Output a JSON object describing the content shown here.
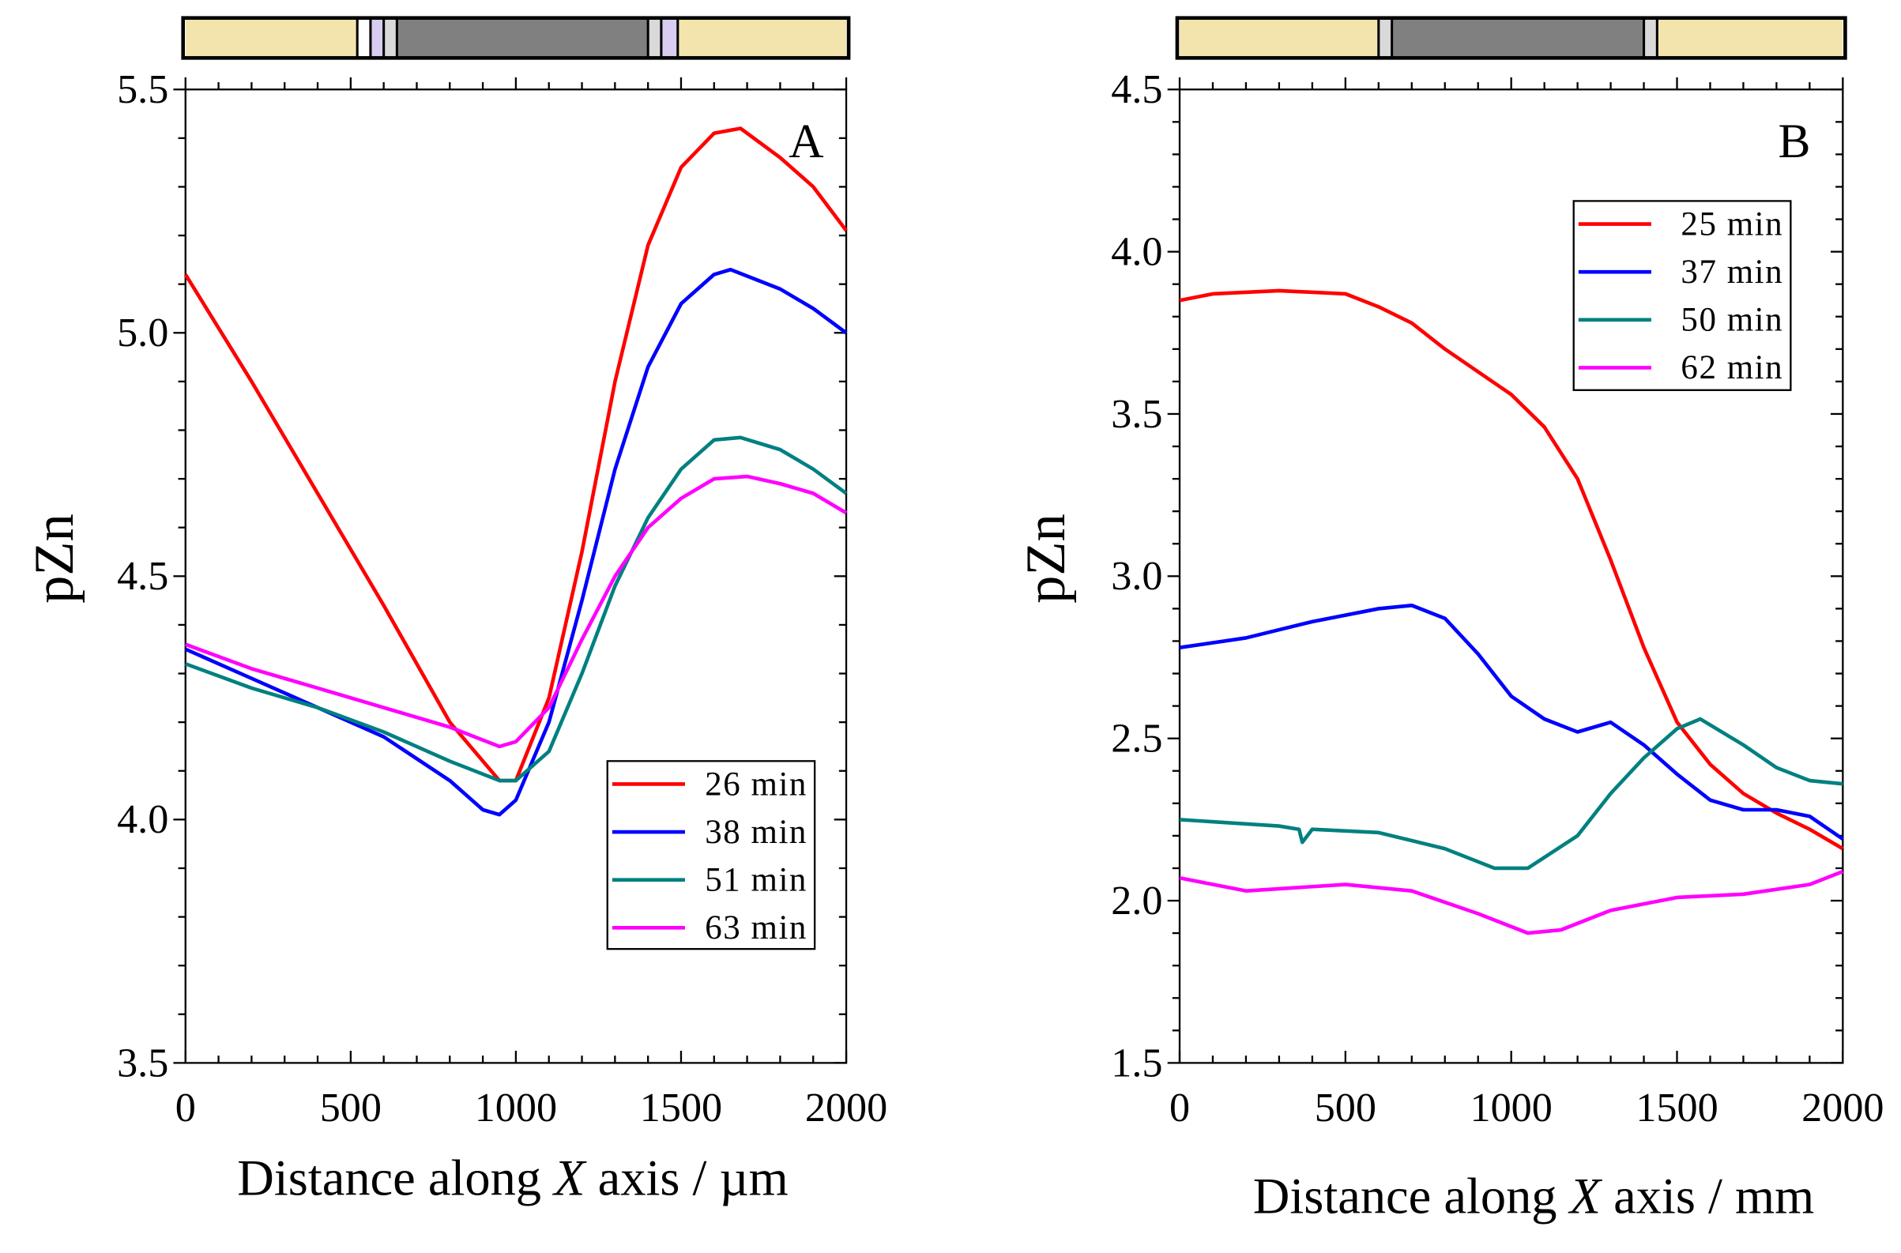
{
  "chart_data": [
    {
      "type": "line",
      "panel_label": "A",
      "xlabel_prefix": "Distance along ",
      "xlabel_var": "X",
      "xlabel_suffix": " axis / µm",
      "ylabel": "pZn",
      "xlim": [
        0,
        2000
      ],
      "ylim": [
        3.5,
        5.5
      ],
      "xticks": [
        "0",
        "500",
        "1000",
        "1500",
        "2000"
      ],
      "yticks": [
        "3.5",
        "4.0",
        "4.5",
        "5.0",
        "5.5"
      ],
      "legend_position": "lower-right",
      "strip": [
        {
          "from": 0,
          "to": 520,
          "color": "#f2e4ac"
        },
        {
          "from": 520,
          "to": 560,
          "color": "#ffffff"
        },
        {
          "from": 560,
          "to": 600,
          "color": "#d8ccf0"
        },
        {
          "from": 600,
          "to": 640,
          "color": "#d9d9d9"
        },
        {
          "from": 640,
          "to": 1400,
          "color": "#808080"
        },
        {
          "from": 1400,
          "to": 1440,
          "color": "#d9d9d9"
        },
        {
          "from": 1440,
          "to": 1490,
          "color": "#d8ccf0"
        },
        {
          "from": 1490,
          "to": 2000,
          "color": "#f2e4ac"
        }
      ],
      "series": [
        {
          "name": "26 min",
          "color": "#ff0000",
          "x": [
            0,
            200,
            400,
            600,
            800,
            950,
            1000,
            1100,
            1200,
            1300,
            1400,
            1500,
            1600,
            1680,
            1800,
            1900,
            2000
          ],
          "y": [
            5.12,
            4.9,
            4.67,
            4.44,
            4.2,
            4.08,
            4.08,
            4.25,
            4.55,
            4.9,
            5.18,
            5.34,
            5.41,
            5.42,
            5.36,
            5.3,
            5.21
          ]
        },
        {
          "name": "38 min",
          "color": "#0000ff",
          "x": [
            0,
            200,
            400,
            600,
            800,
            900,
            950,
            1000,
            1100,
            1200,
            1300,
            1400,
            1500,
            1600,
            1650,
            1800,
            1900,
            2000
          ],
          "y": [
            4.35,
            4.29,
            4.23,
            4.17,
            4.08,
            4.02,
            4.01,
            4.04,
            4.2,
            4.45,
            4.72,
            4.93,
            5.06,
            5.12,
            5.13,
            5.09,
            5.05,
            5.0
          ]
        },
        {
          "name": "51 min",
          "color": "#008080",
          "x": [
            0,
            200,
            400,
            600,
            800,
            950,
            1000,
            1100,
            1200,
            1300,
            1400,
            1500,
            1600,
            1680,
            1800,
            1900,
            2000
          ],
          "y": [
            4.32,
            4.27,
            4.23,
            4.18,
            4.12,
            4.08,
            4.08,
            4.14,
            4.3,
            4.48,
            4.62,
            4.72,
            4.78,
            4.785,
            4.76,
            4.72,
            4.67
          ]
        },
        {
          "name": "63 min",
          "color": "#ff00ff",
          "x": [
            0,
            200,
            400,
            600,
            800,
            950,
            1000,
            1100,
            1200,
            1300,
            1400,
            1500,
            1600,
            1700,
            1800,
            1900,
            2000
          ],
          "y": [
            4.36,
            4.31,
            4.27,
            4.23,
            4.19,
            4.15,
            4.16,
            4.23,
            4.37,
            4.5,
            4.6,
            4.66,
            4.7,
            4.705,
            4.69,
            4.67,
            4.63
          ]
        }
      ]
    },
    {
      "type": "line",
      "panel_label": "B",
      "xlabel_prefix": "Distance along ",
      "xlabel_var": "X",
      "xlabel_suffix": " axis / mm",
      "ylabel": "pZn",
      "xlim": [
        0,
        2000
      ],
      "ylim": [
        1.5,
        4.5
      ],
      "xticks": [
        "0",
        "500",
        "1000",
        "1500",
        "2000"
      ],
      "yticks": [
        "1.5",
        "2.0",
        "2.5",
        "3.0",
        "3.5",
        "4.0",
        "4.5"
      ],
      "legend_position": "upper-right",
      "strip": [
        {
          "from": 0,
          "to": 600,
          "color": "#f2e4ac"
        },
        {
          "from": 600,
          "to": 640,
          "color": "#d9d9d9"
        },
        {
          "from": 640,
          "to": 1400,
          "color": "#808080"
        },
        {
          "from": 1400,
          "to": 1440,
          "color": "#d9d9d9"
        },
        {
          "from": 1440,
          "to": 2000,
          "color": "#f2e4ac"
        }
      ],
      "series": [
        {
          "name": "25 min",
          "color": "#ff0000",
          "x": [
            0,
            100,
            300,
            500,
            600,
            700,
            800,
            900,
            1000,
            1100,
            1200,
            1300,
            1400,
            1500,
            1600,
            1700,
            1800,
            1900,
            2000
          ],
          "y": [
            3.85,
            3.87,
            3.88,
            3.87,
            3.83,
            3.78,
            3.7,
            3.63,
            3.56,
            3.46,
            3.3,
            3.05,
            2.78,
            2.55,
            2.42,
            2.33,
            2.27,
            2.22,
            2.16
          ]
        },
        {
          "name": "37 min",
          "color": "#0000ff",
          "x": [
            0,
            200,
            400,
            600,
            700,
            800,
            900,
            1000,
            1100,
            1200,
            1300,
            1400,
            1500,
            1600,
            1700,
            1800,
            1900,
            2000
          ],
          "y": [
            2.78,
            2.81,
            2.86,
            2.9,
            2.91,
            2.87,
            2.76,
            2.63,
            2.56,
            2.52,
            2.55,
            2.48,
            2.39,
            2.31,
            2.28,
            2.28,
            2.26,
            2.19
          ]
        },
        {
          "name": "50 min",
          "color": "#008080",
          "x": [
            0,
            300,
            360,
            370,
            400,
            600,
            800,
            950,
            1050,
            1200,
            1300,
            1400,
            1500,
            1570,
            1700,
            1800,
            1900,
            2000
          ],
          "y": [
            2.25,
            2.23,
            2.22,
            2.18,
            2.22,
            2.21,
            2.16,
            2.1,
            2.1,
            2.2,
            2.33,
            2.44,
            2.53,
            2.56,
            2.48,
            2.41,
            2.37,
            2.36
          ]
        },
        {
          "name": "62 min",
          "color": "#ff00ff",
          "x": [
            0,
            200,
            500,
            700,
            900,
            1050,
            1150,
            1300,
            1500,
            1700,
            1900,
            2000
          ],
          "y": [
            2.07,
            2.03,
            2.05,
            2.03,
            1.96,
            1.9,
            1.91,
            1.97,
            2.01,
            2.02,
            2.05,
            2.09
          ]
        }
      ]
    }
  ]
}
